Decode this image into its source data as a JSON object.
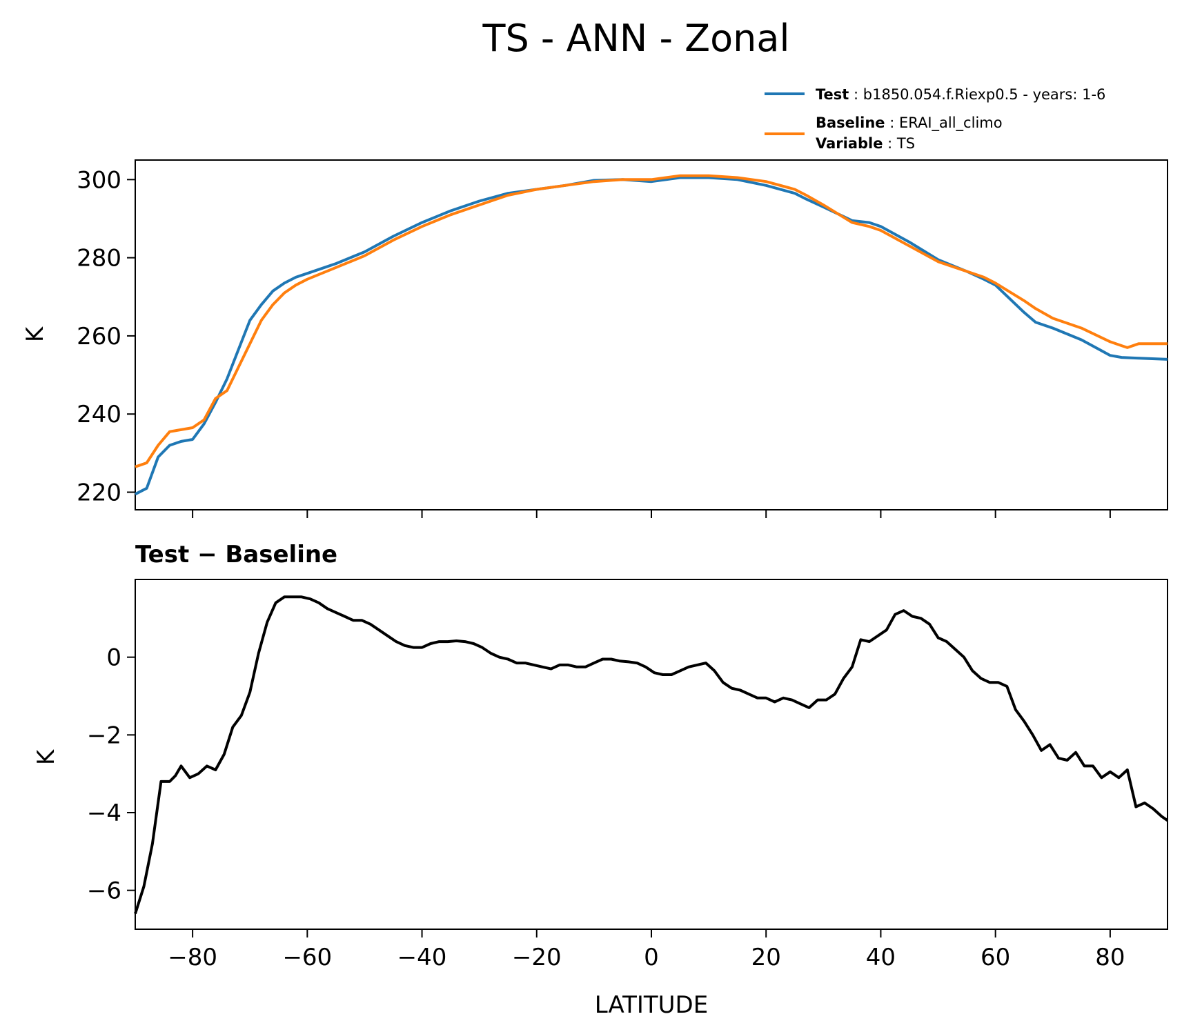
{
  "chart_data": [
    {
      "type": "line",
      "title": "TS - ANN - Zonal",
      "xlabel": "",
      "ylabel": "K",
      "xlim": [
        -90,
        90
      ],
      "ylim": [
        215.5,
        305
      ],
      "xticks": [
        -80,
        -60,
        -40,
        -20,
        0,
        20,
        40,
        60,
        80
      ],
      "yticks": [
        220,
        240,
        260,
        280,
        300
      ],
      "ytick_labels": [
        "220",
        "240",
        "260",
        "280",
        "300"
      ],
      "legend": {
        "position": "top-right",
        "test_key": "Test",
        "test_value": "b1850.054.f.Riexp0.5 - years: 1-6",
        "baseline_key": "Baseline",
        "baseline_value": "ERAI_all_climo",
        "variable_key": "Variable",
        "variable_value": "TS"
      },
      "series": [
        {
          "name": "Test",
          "color": "#1f77b4",
          "x": [
            -90,
            -88,
            -86,
            -84,
            -82,
            -80,
            -78,
            -76,
            -74,
            -72,
            -70,
            -68,
            -66,
            -64,
            -62,
            -60,
            -55,
            -50,
            -45,
            -40,
            -35,
            -30,
            -25,
            -20,
            -15,
            -10,
            -5,
            0,
            5,
            10,
            15,
            20,
            25,
            27,
            30,
            35,
            38,
            40,
            45,
            50,
            55,
            58,
            60,
            65,
            67,
            70,
            75,
            80,
            82,
            85,
            90
          ],
          "values": [
            219.5,
            221,
            229,
            232,
            233,
            233.5,
            237.5,
            243,
            249,
            256.5,
            264,
            268,
            271.5,
            273.5,
            275,
            276,
            278.5,
            281.5,
            285.5,
            289,
            292,
            294.5,
            296.5,
            297.5,
            298.5,
            299.8,
            300,
            299.5,
            300.5,
            300.5,
            300,
            298.5,
            296.5,
            295,
            293,
            289.5,
            289,
            288,
            284,
            279.5,
            276.5,
            274.5,
            273,
            266,
            263.5,
            262,
            259,
            255,
            254.5,
            254.3,
            254
          ]
        },
        {
          "name": "Baseline",
          "color": "#ff7f0e",
          "x": [
            -90,
            -88,
            -86,
            -84,
            -82,
            -80,
            -78,
            -76,
            -74,
            -72,
            -70,
            -68,
            -66,
            -64,
            -62,
            -60,
            -55,
            -50,
            -45,
            -40,
            -35,
            -30,
            -25,
            -20,
            -15,
            -10,
            -5,
            0,
            5,
            10,
            15,
            20,
            25,
            27,
            30,
            35,
            38,
            40,
            45,
            50,
            55,
            58,
            60,
            65,
            67,
            70,
            75,
            80,
            82,
            83,
            85,
            90
          ],
          "values": [
            226.5,
            227.5,
            232,
            235.5,
            236,
            236.5,
            238.5,
            244,
            246,
            252,
            258,
            264,
            268,
            271,
            273,
            274.5,
            277.5,
            280.5,
            284.5,
            288,
            291,
            293.5,
            296,
            297.5,
            298.5,
            299.5,
            300,
            300,
            301,
            301,
            300.5,
            299.5,
            297.5,
            296,
            293.5,
            289,
            288,
            287,
            283,
            279,
            276.5,
            275,
            273.5,
            269,
            267,
            264.5,
            262,
            258.5,
            257.5,
            257,
            258,
            258
          ]
        }
      ]
    },
    {
      "type": "line",
      "title": "Test − Baseline",
      "xlabel": "LATITUDE",
      "ylabel": "K",
      "xlim": [
        -90,
        90
      ],
      "ylim": [
        -7,
        2
      ],
      "xticks": [
        -80,
        -60,
        -40,
        -20,
        0,
        20,
        40,
        60,
        80
      ],
      "xtick_labels": [
        "−80",
        "−60",
        "−40",
        "−20",
        "0",
        "20",
        "40",
        "60",
        "80"
      ],
      "yticks": [
        -6,
        -4,
        -2,
        0
      ],
      "ytick_labels": [
        "−6",
        "−4",
        "−2",
        "0"
      ],
      "series": [
        {
          "name": "Test − Baseline",
          "color": "#000000",
          "x": [
            -90,
            -88.5,
            -87,
            -85.5,
            -84,
            -83,
            -82,
            -80.5,
            -79,
            -77.5,
            -76,
            -74.5,
            -73,
            -71.5,
            -70,
            -68.5,
            -67,
            -65.5,
            -64,
            -62.5,
            -61,
            -59.5,
            -58,
            -56.5,
            -55,
            -53.5,
            -52,
            -50.5,
            -49,
            -47.5,
            -46,
            -44.5,
            -43,
            -41.5,
            -40,
            -38.5,
            -37,
            -35.5,
            -34,
            -32.5,
            -31,
            -29.5,
            -28,
            -26.5,
            -25,
            -23.5,
            -22,
            -20.5,
            -19,
            -17.5,
            -16,
            -14.5,
            -13,
            -11.5,
            -10,
            -8.5,
            -7,
            -5.5,
            -4,
            -2.5,
            -1,
            0.5,
            2,
            3.5,
            5,
            6.5,
            8,
            9.5,
            11,
            12.5,
            14,
            15.5,
            17,
            18.5,
            20,
            21.5,
            23,
            24.5,
            26,
            27.5,
            29,
            30.5,
            32,
            33.5,
            35,
            36.5,
            38,
            39.5,
            41,
            42.5,
            44,
            45.5,
            47,
            48.5,
            50,
            51.5,
            53,
            54.5,
            56,
            57.5,
            59,
            60.5,
            62,
            63.5,
            65,
            66.5,
            68,
            69.5,
            71,
            72.5,
            74,
            75.5,
            77,
            78.5,
            80,
            81.5,
            83,
            84.5,
            86,
            87.5,
            89,
            90
          ],
          "values": [
            -6.6,
            -5.9,
            -4.8,
            -3.2,
            -3.2,
            -3.05,
            -2.8,
            -3.1,
            -3.0,
            -2.8,
            -2.9,
            -2.5,
            -1.8,
            -1.5,
            -0.9,
            0.1,
            0.9,
            1.4,
            1.55,
            1.55,
            1.55,
            1.5,
            1.4,
            1.25,
            1.15,
            1.05,
            0.95,
            0.95,
            0.85,
            0.7,
            0.55,
            0.4,
            0.3,
            0.25,
            0.25,
            0.35,
            0.4,
            0.4,
            0.42,
            0.4,
            0.35,
            0.25,
            0.1,
            0.0,
            -0.05,
            -0.15,
            -0.15,
            -0.2,
            -0.25,
            -0.3,
            -0.2,
            -0.2,
            -0.25,
            -0.25,
            -0.15,
            -0.05,
            -0.05,
            -0.1,
            -0.12,
            -0.15,
            -0.25,
            -0.4,
            -0.45,
            -0.45,
            -0.35,
            -0.25,
            -0.2,
            -0.15,
            -0.35,
            -0.65,
            -0.8,
            -0.85,
            -0.95,
            -1.05,
            -1.05,
            -1.15,
            -1.05,
            -1.1,
            -1.2,
            -1.3,
            -1.1,
            -1.1,
            -0.95,
            -0.55,
            -0.25,
            0.45,
            0.4,
            0.55,
            0.7,
            1.1,
            1.2,
            1.05,
            1.0,
            0.85,
            0.5,
            0.4,
            0.2,
            0.0,
            -0.35,
            -0.55,
            -0.65,
            -0.65,
            -0.75,
            -1.35,
            -1.65,
            -2.0,
            -2.4,
            -2.25,
            -2.6,
            -2.65,
            -2.45,
            -2.8,
            -2.8,
            -3.1,
            -2.95,
            -3.1,
            -2.9,
            -3.85,
            -3.75,
            -3.9,
            -4.1,
            -4.2
          ]
        }
      ]
    }
  ]
}
